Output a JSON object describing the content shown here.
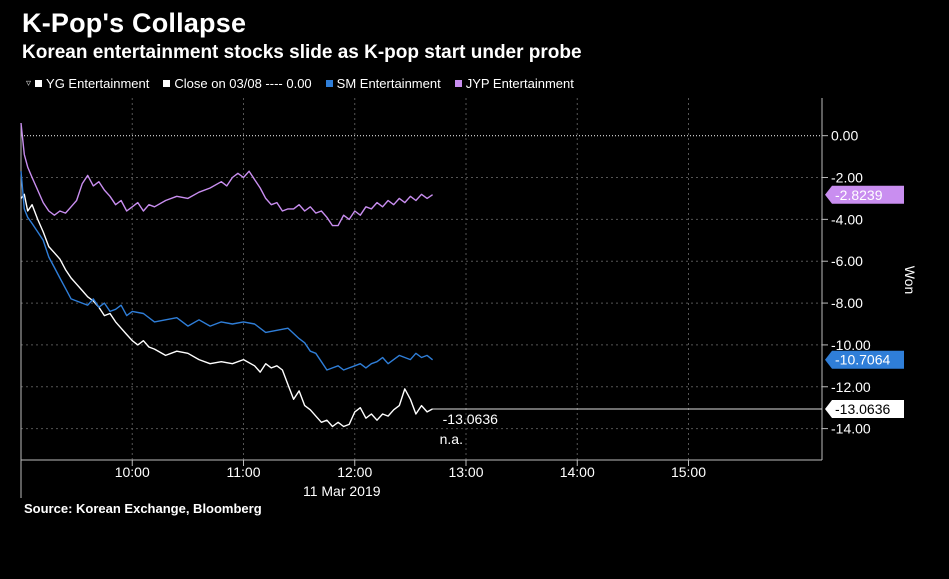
{
  "title": "K-Pop's Collapse",
  "subtitle": "Korean entertainment stocks slide as K-pop start under probe",
  "source": "Source: Korean Exchange, Bloomberg",
  "legend": {
    "yg": "YG Entertainment",
    "close": "Close on 03/08 ---- 0.00",
    "sm": "SM Entertainment",
    "jyp": "JYP Entertainment"
  },
  "chart_data": {
    "type": "line",
    "ylabel": "Won",
    "xlabel": "11 Mar 2019",
    "ylim": [
      -15.5,
      1.8
    ],
    "xlim": [
      9.0,
      16.2
    ],
    "yticks": [
      0,
      -2,
      -4,
      -6,
      -8,
      -10,
      -12,
      -14
    ],
    "ytick_labels": [
      "0.00",
      "-2.00",
      "-4.00",
      "-6.00",
      "-8.00",
      "-10.00",
      "-12.00",
      "-14.00"
    ],
    "xticks": [
      10,
      11,
      12,
      13,
      14,
      15
    ],
    "xtick_labels": [
      "10:00",
      "11:00",
      "12:00",
      "13:00",
      "14:00",
      "15:00"
    ],
    "reference_line": 0,
    "colors": {
      "yg": "#ffffff",
      "sm": "#2f7ed8",
      "jyp": "#c98ef0",
      "close": "#ffffff"
    },
    "annotations": {
      "yg_last": "-13.0636",
      "na": "n.a."
    },
    "series": [
      {
        "key": "yg",
        "name": "YG Entertainment",
        "last_label": "-13.0636",
        "last": -13.0636,
        "x": [
          9.0,
          9.03,
          9.06,
          9.1,
          9.15,
          9.2,
          9.25,
          9.3,
          9.35,
          9.4,
          9.45,
          9.5,
          9.55,
          9.6,
          9.65,
          9.7,
          9.75,
          9.8,
          9.85,
          9.9,
          9.95,
          10.0,
          10.05,
          10.1,
          10.15,
          10.2,
          10.3,
          10.4,
          10.5,
          10.6,
          10.7,
          10.8,
          10.9,
          11.0,
          11.1,
          11.15,
          11.2,
          11.25,
          11.3,
          11.35,
          11.4,
          11.45,
          11.5,
          11.55,
          11.6,
          11.65,
          11.7,
          11.75,
          11.8,
          11.85,
          11.9,
          11.95,
          12.0,
          12.05,
          12.1,
          12.15,
          12.2,
          12.25,
          12.3,
          12.35,
          12.4,
          12.45,
          12.5,
          12.55,
          12.6,
          12.65,
          12.7
        ],
        "values": [
          -3.0,
          -2.8,
          -3.6,
          -3.3,
          -4.0,
          -4.6,
          -5.3,
          -5.6,
          -5.9,
          -6.4,
          -6.8,
          -7.1,
          -7.4,
          -7.7,
          -7.9,
          -8.2,
          -8.6,
          -8.5,
          -8.9,
          -9.2,
          -9.5,
          -9.8,
          -10.0,
          -9.8,
          -10.1,
          -10.2,
          -10.5,
          -10.3,
          -10.4,
          -10.7,
          -10.9,
          -10.8,
          -10.9,
          -10.7,
          -11.0,
          -11.3,
          -10.9,
          -11.1,
          -11.0,
          -11.2,
          -11.9,
          -12.6,
          -12.2,
          -12.9,
          -13.1,
          -13.4,
          -13.7,
          -13.6,
          -13.9,
          -13.7,
          -13.9,
          -13.8,
          -13.2,
          -13.0,
          -13.5,
          -13.3,
          -13.6,
          -13.3,
          -13.4,
          -13.1,
          -12.9,
          -12.1,
          -12.6,
          -13.3,
          -12.9,
          -13.2,
          -13.06
        ]
      },
      {
        "key": "sm",
        "name": "SM Entertainment",
        "last_label": "-10.7064",
        "last": -10.7064,
        "x": [
          9.0,
          9.03,
          9.06,
          9.1,
          9.15,
          9.2,
          9.25,
          9.3,
          9.35,
          9.4,
          9.45,
          9.5,
          9.55,
          9.6,
          9.65,
          9.7,
          9.75,
          9.8,
          9.85,
          9.9,
          9.95,
          10.0,
          10.1,
          10.2,
          10.3,
          10.4,
          10.5,
          10.6,
          10.7,
          10.8,
          10.9,
          11.0,
          11.1,
          11.2,
          11.3,
          11.4,
          11.5,
          11.55,
          11.6,
          11.65,
          11.7,
          11.75,
          11.8,
          11.85,
          11.9,
          11.95,
          12.0,
          12.05,
          12.1,
          12.15,
          12.2,
          12.25,
          12.3,
          12.35,
          12.4,
          12.45,
          12.5,
          12.55,
          12.6,
          12.65,
          12.7
        ],
        "values": [
          -1.7,
          -3.5,
          -3.9,
          -4.2,
          -4.6,
          -5.0,
          -5.8,
          -6.3,
          -6.8,
          -7.3,
          -7.8,
          -7.9,
          -8.0,
          -8.1,
          -7.8,
          -8.2,
          -8.0,
          -8.4,
          -8.3,
          -8.1,
          -8.6,
          -8.4,
          -8.5,
          -8.9,
          -8.8,
          -8.7,
          -9.1,
          -8.8,
          -9.1,
          -8.9,
          -9.0,
          -8.9,
          -9.0,
          -9.4,
          -9.3,
          -9.2,
          -9.7,
          -9.9,
          -10.3,
          -10.4,
          -10.8,
          -11.2,
          -11.1,
          -11.0,
          -11.2,
          -11.1,
          -11.0,
          -10.9,
          -11.1,
          -10.9,
          -10.8,
          -10.6,
          -10.9,
          -10.7,
          -10.5,
          -10.6,
          -10.7,
          -10.4,
          -10.6,
          -10.5,
          -10.71
        ]
      },
      {
        "key": "jyp",
        "name": "JYP Entertainment",
        "last_label": "-2.8239",
        "last": -2.8239,
        "x": [
          9.0,
          9.03,
          9.06,
          9.1,
          9.15,
          9.2,
          9.25,
          9.3,
          9.35,
          9.4,
          9.45,
          9.5,
          9.55,
          9.6,
          9.65,
          9.7,
          9.75,
          9.8,
          9.85,
          9.9,
          9.95,
          10.0,
          10.05,
          10.1,
          10.15,
          10.2,
          10.3,
          10.4,
          10.5,
          10.6,
          10.7,
          10.8,
          10.85,
          10.9,
          10.95,
          11.0,
          11.05,
          11.1,
          11.15,
          11.2,
          11.25,
          11.3,
          11.35,
          11.4,
          11.45,
          11.5,
          11.55,
          11.6,
          11.65,
          11.7,
          11.75,
          11.8,
          11.85,
          11.9,
          11.95,
          12.0,
          12.05,
          12.1,
          12.15,
          12.2,
          12.25,
          12.3,
          12.35,
          12.4,
          12.45,
          12.5,
          12.55,
          12.6,
          12.65,
          12.7
        ],
        "values": [
          0.6,
          -0.9,
          -1.5,
          -2.0,
          -2.6,
          -3.2,
          -3.6,
          -3.8,
          -3.6,
          -3.7,
          -3.4,
          -3.1,
          -2.3,
          -1.9,
          -2.4,
          -2.2,
          -2.6,
          -2.9,
          -3.3,
          -3.1,
          -3.6,
          -3.4,
          -3.2,
          -3.6,
          -3.3,
          -3.4,
          -3.1,
          -2.9,
          -3.0,
          -2.7,
          -2.5,
          -2.2,
          -2.4,
          -2.0,
          -1.8,
          -2.0,
          -1.7,
          -2.1,
          -2.5,
          -3.0,
          -3.3,
          -3.2,
          -3.6,
          -3.5,
          -3.5,
          -3.3,
          -3.6,
          -3.4,
          -3.7,
          -3.6,
          -3.9,
          -4.3,
          -4.3,
          -3.8,
          -4.0,
          -3.6,
          -3.8,
          -3.4,
          -3.5,
          -3.2,
          -3.4,
          -3.1,
          -3.3,
          -3.0,
          -3.2,
          -2.9,
          -3.1,
          -2.8,
          -3.0,
          -2.82
        ]
      }
    ]
  }
}
